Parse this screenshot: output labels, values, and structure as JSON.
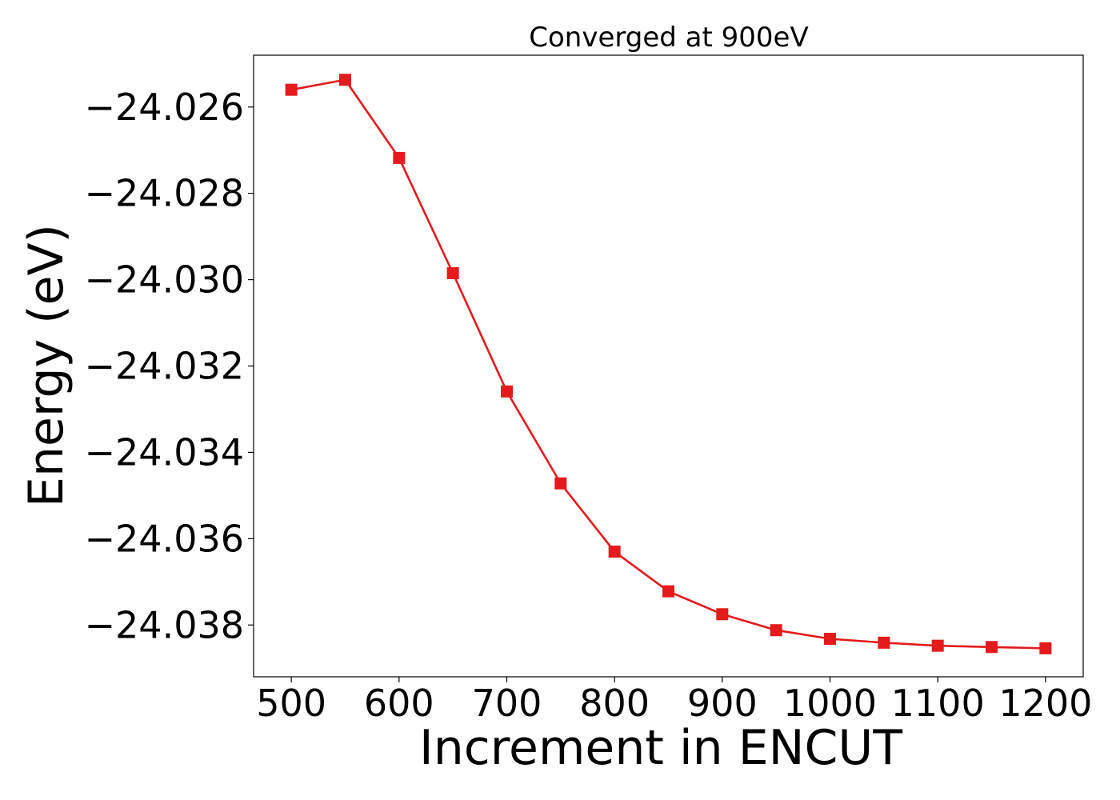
{
  "chart_data": {
    "type": "line",
    "title": "Converged at 900eV",
    "xlabel": "Increment in ENCUT",
    "ylabel": "Energy (eV)",
    "xlim": [
      465,
      1235
    ],
    "ylim": [
      -24.0392,
      -24.0248
    ],
    "x_ticks": [
      500,
      600,
      700,
      800,
      900,
      1000,
      1100,
      1200
    ],
    "x_tick_labels": [
      "500",
      "600",
      "700",
      "800",
      "900",
      "1000",
      "1100",
      "1200"
    ],
    "y_ticks": [
      -24.026,
      -24.028,
      -24.03,
      -24.032,
      -24.034,
      -24.036,
      -24.038
    ],
    "y_tick_labels": [
      "−24.026",
      "−24.028",
      "−24.030",
      "−24.032",
      "−24.034",
      "−24.036",
      "−24.038"
    ],
    "grid": false,
    "series": [
      {
        "name": "Energy",
        "color": "#e41a1c",
        "marker": "square",
        "x": [
          500,
          550,
          600,
          650,
          700,
          750,
          800,
          850,
          900,
          950,
          1000,
          1050,
          1100,
          1150,
          1200
        ],
        "y": [
          -24.0256,
          -24.02537,
          -24.02718,
          -24.02985,
          -24.03259,
          -24.03472,
          -24.0363,
          -24.03722,
          -24.03775,
          -24.03812,
          -24.03832,
          -24.03841,
          -24.03848,
          -24.03851,
          -24.03854
        ]
      }
    ]
  }
}
